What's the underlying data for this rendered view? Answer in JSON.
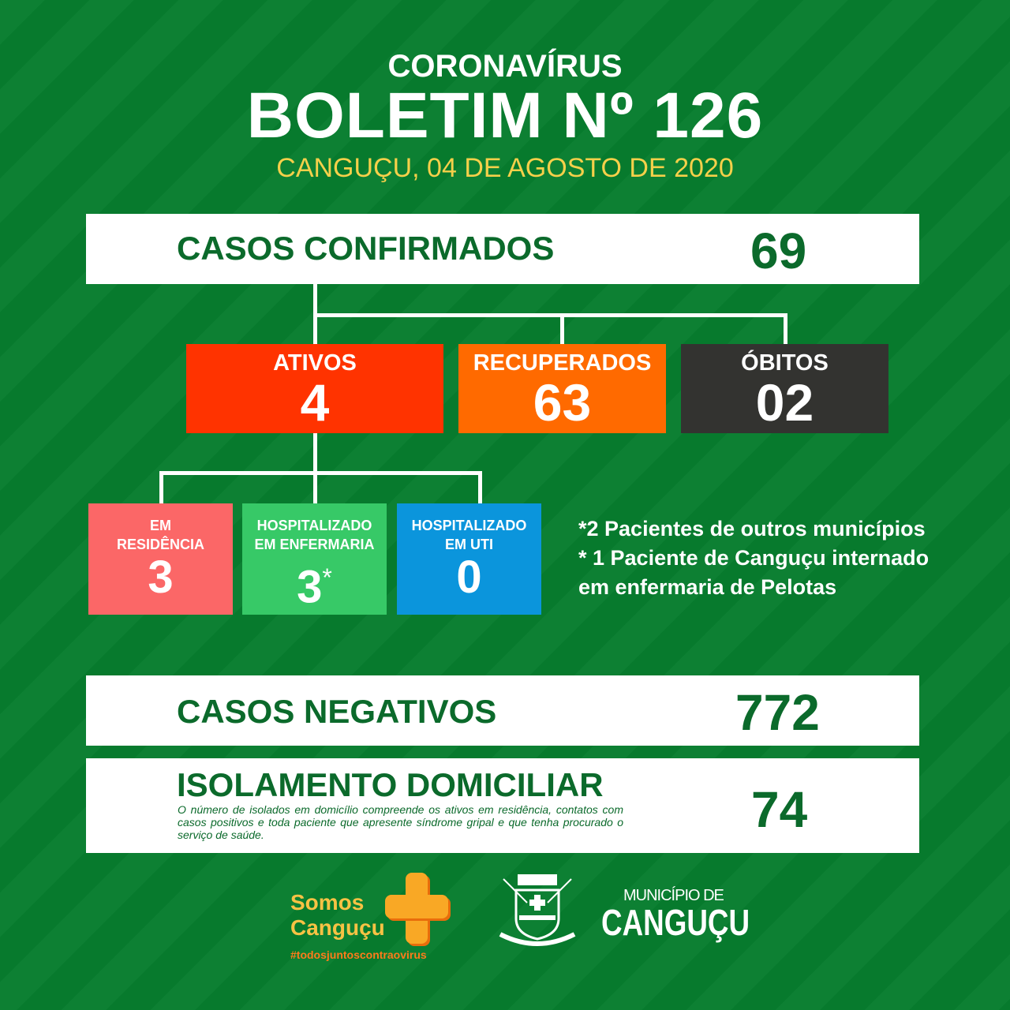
{
  "header": {
    "kicker": "CORONAVÍRUS",
    "title": "BOLETIM Nº 126",
    "date": "CANGUÇU, 04  DE AGOSTO  DE 2020"
  },
  "confirmados": {
    "label": "CASOS CONFIRMADOS",
    "value": "69"
  },
  "status": [
    {
      "label": "ATIVOS",
      "value": "4",
      "color": "#ff3300"
    },
    {
      "label": "RECUPERADOS",
      "value": "63",
      "color": "#ff6a00"
    },
    {
      "label": "ÓBITOS",
      "value": "02",
      "color": "#333330"
    }
  ],
  "ativos_breakdown": [
    {
      "label_line1": "EM",
      "label_line2": "RESIDÊNCIA",
      "value": "3",
      "color": "#fb6767"
    },
    {
      "label_line1": "HOSPITALIZADO",
      "label_line2": "EM ENFERMARIA",
      "value": "3",
      "asterisk": "*",
      "color": "#37c967"
    },
    {
      "label_line1": "HOSPITALIZADO",
      "label_line2": "EM UTI",
      "value": "0",
      "color": "#0b95dc"
    }
  ],
  "notes": [
    "*2 Pacientes de outros municípios",
    "* 1 Paciente de Canguçu internado",
    "em enfermaria de Pelotas"
  ],
  "negativos": {
    "label": "CASOS NEGATIVOS",
    "value": "772"
  },
  "isolamento": {
    "label": "ISOLAMENTO DOMICILIAR",
    "value": "74",
    "description": "O número de isolados em domicílio compreende os ativos em residência, contatos com casos positivos e toda paciente que apresente síndrome gripal e que tenha procurado o serviço de saúde."
  },
  "footer": {
    "campaign_line1": "Somos",
    "campaign_line2": "Canguçu",
    "hashtag": "#todosjuntoscontraovirus",
    "municipio_small": "MUNICÍPIO DE",
    "municipio_big": "CANGUÇU",
    "crest_text": "CANGUÇU"
  },
  "colors": {
    "background": "#077d2e",
    "text_green": "#0b6a2b",
    "date_yellow": "#f5d04a"
  }
}
